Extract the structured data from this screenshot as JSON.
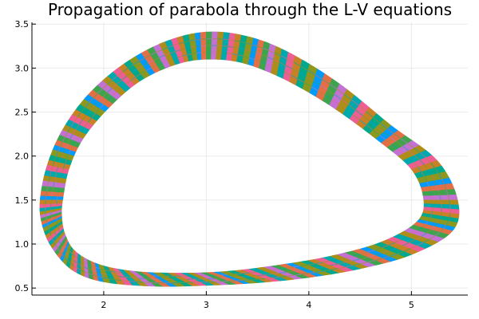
{
  "chart_data": {
    "type": "scatter",
    "title": "Propagation of parabola through the L-V equations",
    "xlabel": "",
    "ylabel": "",
    "xlim": [
      1.3,
      5.55
    ],
    "ylim": [
      0.42,
      3.52
    ],
    "xticks": [
      2,
      3,
      4,
      5
    ],
    "yticks": [
      0.5,
      1.0,
      1.5,
      2.0,
      2.5,
      3.0,
      3.5
    ],
    "xtick_labels": [
      "2",
      "3",
      "4",
      "5"
    ],
    "ytick_labels": [
      "0.5",
      "1.0",
      "1.5",
      "2.0",
      "2.5",
      "3.0",
      "3.5"
    ],
    "grid": true,
    "legend": "none",
    "series_colors": [
      "#009AFA",
      "#E36F47",
      "#3EA44E",
      "#C371D2",
      "#AC8E18",
      "#00A9AD",
      "#ED5E93",
      "#C68225",
      "#00A98D",
      "#8E971E"
    ],
    "band": {
      "description_role": "ring of 24 overlapping trajectories",
      "outer_boundary": [
        [
          1.38,
          1.5
        ],
        [
          1.45,
          1.9
        ],
        [
          1.6,
          2.3
        ],
        [
          1.85,
          2.7
        ],
        [
          2.2,
          3.05
        ],
        [
          2.6,
          3.3
        ],
        [
          3.0,
          3.41
        ],
        [
          3.4,
          3.36
        ],
        [
          3.8,
          3.18
        ],
        [
          4.3,
          2.82
        ],
        [
          4.8,
          2.35
        ],
        [
          5.25,
          1.95
        ],
        [
          5.45,
          1.5
        ],
        [
          5.4,
          1.15
        ],
        [
          5.0,
          0.88
        ],
        [
          4.5,
          0.72
        ],
        [
          4.0,
          0.62
        ],
        [
          3.5,
          0.56
        ],
        [
          3.0,
          0.53
        ],
        [
          2.5,
          0.52
        ],
        [
          2.0,
          0.57
        ],
        [
          1.7,
          0.7
        ],
        [
          1.5,
          0.95
        ],
        [
          1.4,
          1.22
        ]
      ],
      "inner_boundary": [
        [
          1.6,
          1.5
        ],
        [
          1.66,
          1.85
        ],
        [
          1.8,
          2.2
        ],
        [
          2.05,
          2.55
        ],
        [
          2.35,
          2.85
        ],
        [
          2.7,
          3.04
        ],
        [
          3.0,
          3.1
        ],
        [
          3.35,
          3.06
        ],
        [
          3.75,
          2.88
        ],
        [
          4.2,
          2.58
        ],
        [
          4.65,
          2.2
        ],
        [
          5.0,
          1.85
        ],
        [
          5.12,
          1.5
        ],
        [
          5.05,
          1.25
        ],
        [
          4.7,
          1.02
        ],
        [
          4.2,
          0.86
        ],
        [
          3.7,
          0.76
        ],
        [
          3.2,
          0.69
        ],
        [
          2.75,
          0.67
        ],
        [
          2.3,
          0.69
        ],
        [
          1.95,
          0.77
        ],
        [
          1.72,
          0.92
        ],
        [
          1.62,
          1.12
        ],
        [
          1.59,
          1.32
        ]
      ]
    },
    "series": [
      {
        "values_x_offset": 0
      },
      {
        "values_x_offset": 1
      },
      {
        "values_x_offset": 2
      },
      {
        "values_x_offset": 3
      },
      {
        "values_x_offset": 4
      },
      {
        "values_x_offset": 5
      },
      {
        "values_x_offset": 6
      },
      {
        "values_x_offset": 7
      },
      {
        "values_x_offset": 8
      },
      {
        "values_x_offset": 9
      }
    ]
  }
}
